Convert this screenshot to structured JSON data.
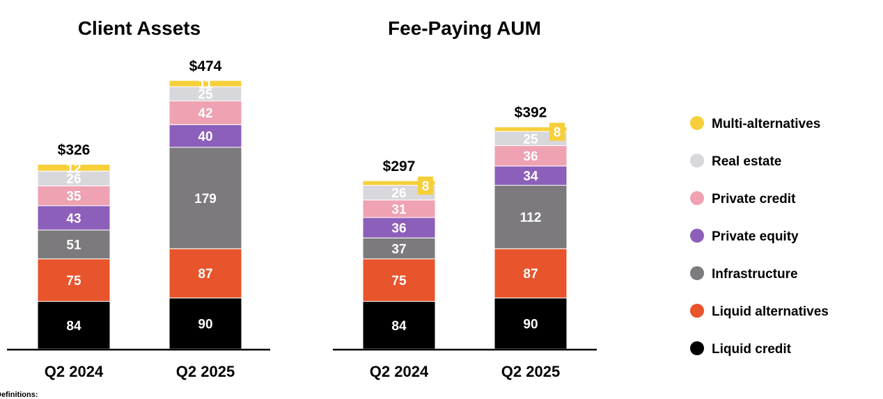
{
  "chart_data": [
    {
      "type": "bar",
      "stacked": true,
      "title": "Client Assets",
      "categories": [
        "Q2 2024",
        "Q2 2025"
      ],
      "totals": [
        "$326",
        "$474"
      ],
      "series": [
        {
          "name": "Liquid credit",
          "values": [
            84,
            90
          ]
        },
        {
          "name": "Liquid alternatives",
          "values": [
            75,
            87
          ]
        },
        {
          "name": "Infrastructure",
          "values": [
            51,
            179
          ]
        },
        {
          "name": "Private equity",
          "values": [
            43,
            40
          ]
        },
        {
          "name": "Private credit",
          "values": [
            35,
            42
          ]
        },
        {
          "name": "Real estate",
          "values": [
            26,
            25
          ]
        },
        {
          "name": "Multi-alternatives",
          "values": [
            12,
            11
          ]
        }
      ]
    },
    {
      "type": "bar",
      "stacked": true,
      "title": "Fee-Paying AUM",
      "categories": [
        "Q2 2024",
        "Q2 2025"
      ],
      "totals": [
        "$297",
        "$392"
      ],
      "series": [
        {
          "name": "Liquid credit",
          "values": [
            84,
            90
          ]
        },
        {
          "name": "Liquid alternatives",
          "values": [
            75,
            87
          ]
        },
        {
          "name": "Infrastructure",
          "values": [
            37,
            112
          ]
        },
        {
          "name": "Private equity",
          "values": [
            36,
            34
          ]
        },
        {
          "name": "Private credit",
          "values": [
            31,
            36
          ]
        },
        {
          "name": "Real estate",
          "values": [
            26,
            25
          ]
        },
        {
          "name": "Multi-alternatives",
          "values": [
            8,
            8
          ]
        }
      ]
    }
  ],
  "colors": {
    "Liquid credit": "#000000",
    "Liquid alternatives": "#e8542c",
    "Infrastructure": "#7c7a7d",
    "Private equity": "#8c5fba",
    "Private credit": "#eea2b2",
    "Real estate": "#d8d7dc",
    "Multi-alternatives": "#f6cf3a"
  },
  "legend": [
    {
      "label": "Multi-alternatives",
      "color": "#f6cf3a"
    },
    {
      "label": "Real estate",
      "color": "#d8d7dc"
    },
    {
      "label": "Private credit",
      "color": "#eea2b2"
    },
    {
      "label": "Private equity",
      "color": "#8c5fba"
    },
    {
      "label": "Infrastructure",
      "color": "#7c7a7d"
    },
    {
      "label": "Liquid alternatives",
      "color": "#e8542c"
    },
    {
      "label": "Liquid credit",
      "color": "#000000"
    }
  ],
  "footnote": "Definitions:"
}
